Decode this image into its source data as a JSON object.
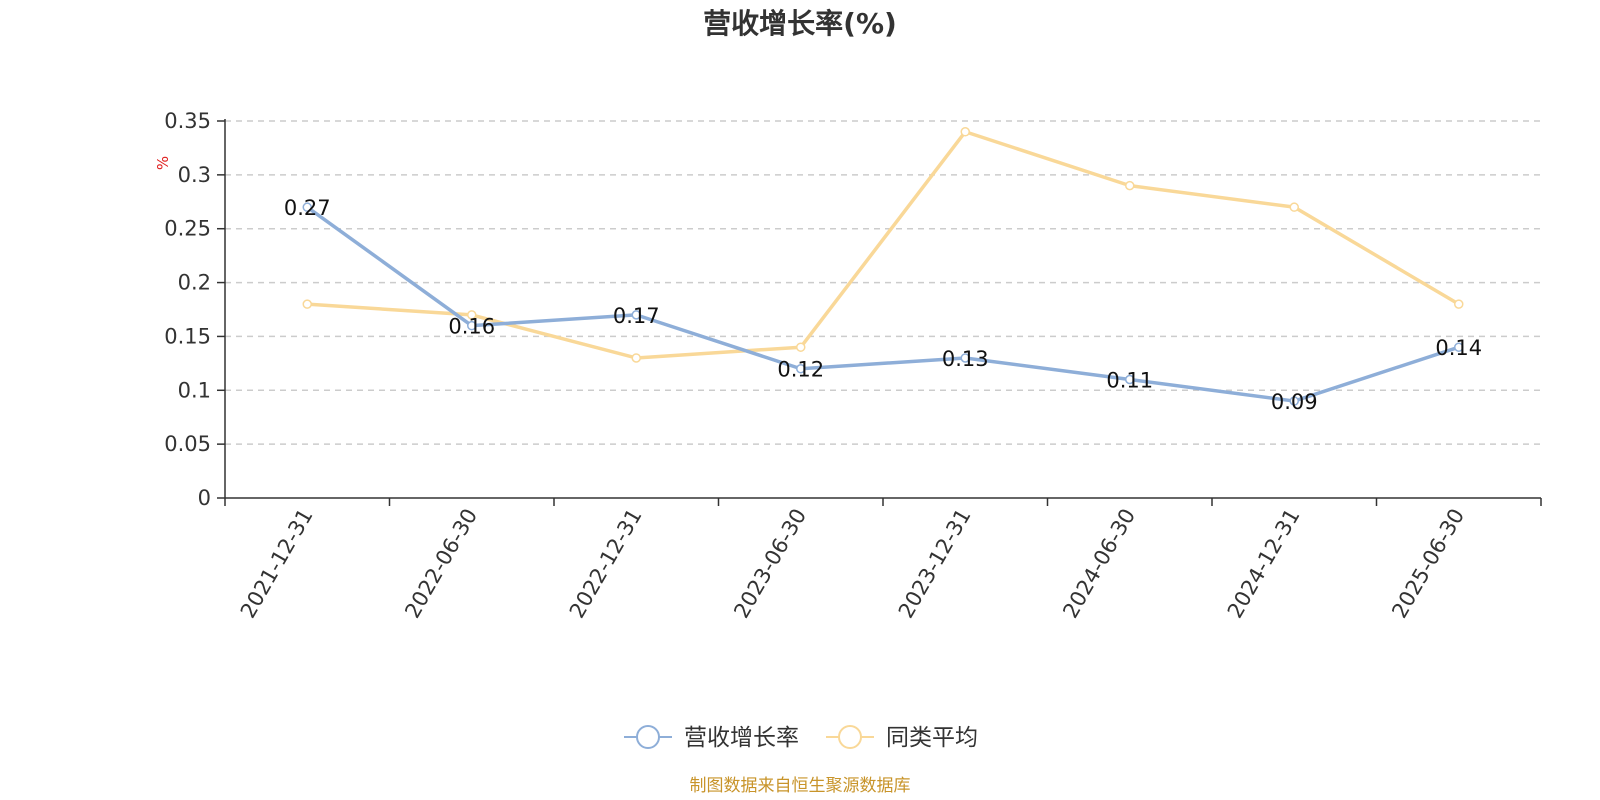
{
  "chart_data": {
    "type": "line",
    "title": "营收增长率(%)",
    "ylabel": "%",
    "xlabel": "",
    "categories": [
      "2021-12-31",
      "2022-06-30",
      "2022-12-31",
      "2023-06-30",
      "2023-12-31",
      "2024-06-30",
      "2024-12-31",
      "2025-06-30"
    ],
    "yticks": [
      "0",
      "0.05",
      "0.1",
      "0.15",
      "0.2",
      "0.25",
      "0.3",
      "0.35"
    ],
    "ylim": [
      0,
      0.35
    ],
    "grid": true,
    "legend_position": "bottom",
    "series": [
      {
        "name": "营收增长率",
        "color": "#8eaed8",
        "show_labels": true,
        "values": [
          0.27,
          0.16,
          0.17,
          0.12,
          0.13,
          0.11,
          0.09,
          0.14
        ],
        "labels": [
          "0.27",
          "0.16",
          "0.17",
          "0.12",
          "0.13",
          "0.11",
          "0.09",
          "0.14"
        ]
      },
      {
        "name": "同类平均",
        "color": "#f9d898",
        "show_labels": false,
        "values": [
          0.18,
          0.17,
          0.13,
          0.14,
          0.34,
          0.29,
          0.27,
          0.18
        ]
      }
    ]
  },
  "source_text": "制图数据来自恒生聚源数据库"
}
